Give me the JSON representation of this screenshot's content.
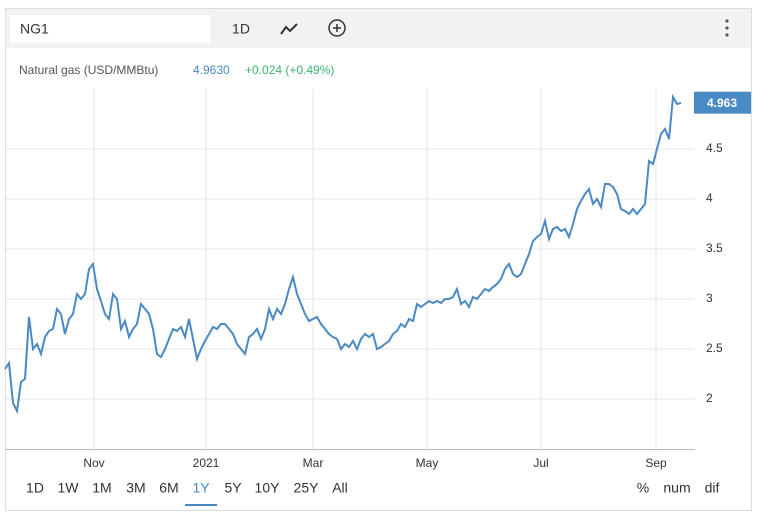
{
  "toolbar": {
    "symbol": "NG1",
    "interval": "1D"
  },
  "chart_data": {
    "type": "line",
    "series": [
      {
        "name": "Natural gas (USD/MMBtu)",
        "color": "#4a8ac4",
        "values": [
          2.3,
          2.36,
          1.96,
          1.88,
          2.17,
          2.2,
          2.82,
          2.5,
          2.55,
          2.45,
          2.62,
          2.68,
          2.7,
          2.9,
          2.85,
          2.65,
          2.8,
          2.85,
          3.05,
          3.0,
          3.05,
          3.3,
          3.35,
          3.1,
          2.98,
          2.85,
          2.8,
          3.05,
          3.0,
          2.7,
          2.78,
          2.62,
          2.7,
          2.75,
          2.95,
          2.9,
          2.85,
          2.7,
          2.45,
          2.42,
          2.5,
          2.6,
          2.7,
          2.68,
          2.72,
          2.62,
          2.8,
          2.6,
          2.4,
          2.5,
          2.58,
          2.65,
          2.72,
          2.7,
          2.75,
          2.75,
          2.7,
          2.65,
          2.55,
          2.5,
          2.45,
          2.62,
          2.65,
          2.7,
          2.6,
          2.7,
          2.9,
          2.8,
          2.9,
          2.85,
          2.95,
          3.1,
          3.22,
          3.05,
          2.95,
          2.85,
          2.78,
          2.8,
          2.82,
          2.75,
          2.7,
          2.65,
          2.62,
          2.6,
          2.5,
          2.55,
          2.52,
          2.58,
          2.5,
          2.6,
          2.65,
          2.62,
          2.65,
          2.5,
          2.52,
          2.55,
          2.58,
          2.65,
          2.68,
          2.75,
          2.72,
          2.8,
          2.78,
          2.95,
          2.92,
          2.95,
          2.98,
          2.96,
          2.98,
          2.96,
          3.0,
          3.0,
          3.02,
          3.1,
          2.95,
          2.98,
          2.92,
          3.02,
          3.0,
          3.05,
          3.1,
          3.08,
          3.12,
          3.15,
          3.2,
          3.3,
          3.35,
          3.25,
          3.22,
          3.25,
          3.35,
          3.45,
          3.58,
          3.62,
          3.65,
          3.78,
          3.6,
          3.7,
          3.72,
          3.68,
          3.7,
          3.62,
          3.75,
          3.9,
          3.98,
          4.05,
          4.1,
          3.95,
          4.0,
          3.92,
          4.15,
          4.15,
          4.12,
          4.05,
          3.9,
          3.88,
          3.85,
          3.9,
          3.85,
          3.9,
          3.95,
          4.38,
          4.35,
          4.5,
          4.65,
          4.7,
          4.6,
          5.02,
          4.95,
          4.96
        ]
      }
    ],
    "price": "4.9630",
    "change": "+0.024 (+0.49%)",
    "last_value": 4.963,
    "ylim": [
      1.5,
      5.1
    ],
    "yticks": [
      2,
      2.5,
      3,
      3.5,
      4,
      4.5
    ],
    "xlim": [
      0,
      172.5
    ],
    "xticks": [
      {
        "value": 22.25,
        "label": "Nov"
      },
      {
        "value": 50.25,
        "label": "2021"
      },
      {
        "value": 77,
        "label": "Mar"
      },
      {
        "value": 105.5,
        "label": "May"
      },
      {
        "value": 134,
        "label": "Jul"
      },
      {
        "value": 162.75,
        "label": "Sep"
      }
    ],
    "grid": true,
    "ranges": [
      "1D",
      "1W",
      "1M",
      "3M",
      "6M",
      "1Y",
      "5Y",
      "10Y",
      "25Y",
      "All"
    ],
    "selected_range": 5,
    "modes": [
      "%",
      "num",
      "dif"
    ]
  }
}
